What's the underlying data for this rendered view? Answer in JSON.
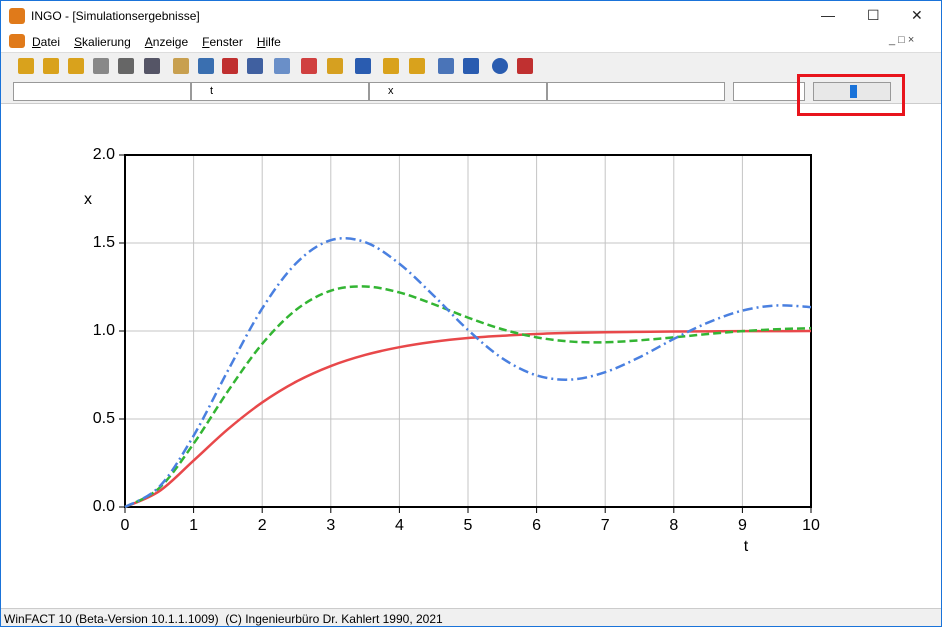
{
  "window": {
    "title": "INGO - [Simulationsergebnisse]"
  },
  "menu": [
    "Datei",
    "Skalierung",
    "Anzeige",
    "Fenster",
    "Hilfe"
  ],
  "toolbar": {
    "fields": [
      "t",
      "x"
    ]
  },
  "status": "WinFACT 10 (Beta-Version 10.1.1.1009)  (C) Ingenieurbüro Dr. Kahlert 1990, 2021",
  "chart_data": {
    "type": "line",
    "xlabel": "t",
    "ylabel": "x",
    "x": [
      0,
      0.5,
      1,
      1.5,
      2,
      2.5,
      3,
      3.5,
      4,
      4.5,
      5,
      5.5,
      6,
      6.5,
      7,
      7.5,
      8,
      8.5,
      9,
      9.5,
      10
    ],
    "series": [
      {
        "color": "#e8484a",
        "dash": "solid",
        "values": [
          0,
          0.09,
          0.264,
          0.442,
          0.594,
          0.713,
          0.801,
          0.864,
          0.908,
          0.939,
          0.96,
          0.973,
          0.983,
          0.989,
          0.993,
          0.995,
          0.997,
          0.998,
          0.999,
          0.999,
          1.0
        ]
      },
      {
        "color": "#33b533",
        "dash": "dashed",
        "values": [
          0,
          0.108,
          0.36,
          0.658,
          0.927,
          1.122,
          1.229,
          1.253,
          1.219,
          1.152,
          1.076,
          1.01,
          0.964,
          0.94,
          0.936,
          0.947,
          0.964,
          0.983,
          0.999,
          1.01,
          1.016
        ]
      },
      {
        "color": "#4a80e0",
        "dash": "dashdot",
        "values": [
          0,
          0.115,
          0.405,
          0.775,
          1.128,
          1.387,
          1.516,
          1.505,
          1.382,
          1.201,
          1.006,
          0.845,
          0.748,
          0.724,
          0.766,
          0.851,
          0.955,
          1.048,
          1.116,
          1.145,
          1.136
        ]
      }
    ],
    "xlim": [
      0,
      10
    ],
    "xticks": [
      0,
      1,
      2,
      3,
      4,
      5,
      6,
      7,
      8,
      9,
      10
    ],
    "ylim": [
      0,
      2
    ],
    "yticks": [
      {
        "value": 0,
        "label": "0.0"
      },
      {
        "value": 0.5,
        "label": "0.5"
      },
      {
        "value": 1,
        "label": "1.0"
      },
      {
        "value": 1.5,
        "label": "1.5"
      },
      {
        "value": 2,
        "label": "2.0"
      }
    ],
    "grid": true
  }
}
